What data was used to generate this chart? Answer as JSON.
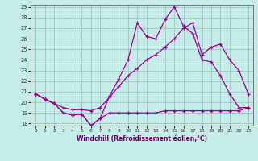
{
  "xlabel": "Windchill (Refroidissement éolien,°C)",
  "background_color": "#c5ece6",
  "line_color": "#990099",
  "grid_color": "#9bbfba",
  "xlim": [
    -0.5,
    23.5
  ],
  "ylim": [
    17.8,
    29.2
  ],
  "xticks": [
    0,
    1,
    2,
    3,
    4,
    5,
    6,
    7,
    8,
    9,
    10,
    11,
    12,
    13,
    14,
    15,
    16,
    17,
    18,
    19,
    20,
    21,
    22,
    23
  ],
  "yticks": [
    18,
    19,
    20,
    21,
    22,
    23,
    24,
    25,
    26,
    27,
    28,
    29
  ],
  "series_jagged": [
    20.8,
    20.3,
    19.9,
    19.0,
    18.8,
    18.9,
    17.8,
    18.5,
    20.6,
    22.2,
    24.0,
    27.5,
    26.2,
    26.0,
    27.8,
    29.0,
    27.2,
    26.5,
    24.0,
    23.8,
    22.5,
    20.8,
    19.5,
    19.5
  ],
  "series_upper_diag": [
    20.8,
    20.3,
    19.9,
    19.5,
    19.3,
    19.3,
    19.2,
    19.5,
    20.5,
    21.5,
    22.5,
    23.2,
    24.0,
    24.5,
    25.2,
    26.0,
    27.0,
    27.5,
    24.5,
    25.2,
    25.5,
    24.0,
    23.0,
    20.8
  ],
  "series_lower_flat": [
    20.8,
    20.3,
    19.9,
    19.0,
    18.8,
    18.9,
    17.8,
    18.5,
    19.0,
    19.0,
    19.0,
    19.0,
    19.0,
    19.0,
    19.2,
    19.2,
    19.2,
    19.2,
    19.2,
    19.2,
    19.2,
    19.2,
    19.2,
    19.5
  ]
}
